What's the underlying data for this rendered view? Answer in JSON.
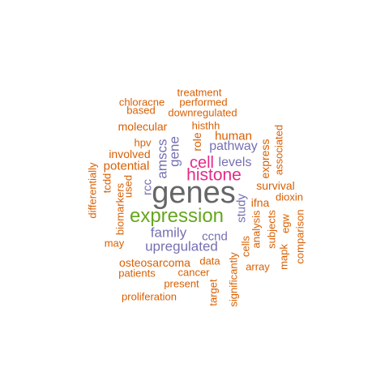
{
  "palette": {
    "orange": "#D95F02",
    "purple": "#7570B3",
    "magenta": "#E7298A",
    "green": "#66A61E",
    "gray": "#666666"
  },
  "words": [
    {
      "text": "genes",
      "color": "#666666",
      "freq": 9
    },
    {
      "text": "expression",
      "color": "#66A61E",
      "freq": 6
    },
    {
      "text": "histone",
      "color": "#E7298A",
      "freq": 5
    },
    {
      "text": "cell",
      "color": "#E7298A",
      "freq": 5
    },
    {
      "text": "family",
      "color": "#7570B3",
      "freq": 4
    },
    {
      "text": "upregulated",
      "color": "#7570B3",
      "freq": 4
    },
    {
      "text": "amscs",
      "color": "#7570B3",
      "freq": 4
    },
    {
      "text": "gene",
      "color": "#7570B3",
      "freq": 4
    },
    {
      "text": "pathway",
      "color": "#7570B3",
      "freq": 4
    },
    {
      "text": "levels",
      "color": "#7570B3",
      "freq": 4
    },
    {
      "text": "ccnd",
      "color": "#7570B3",
      "freq": 4
    },
    {
      "text": "rcc",
      "color": "#7570B3",
      "freq": 4
    },
    {
      "text": "study",
      "color": "#7570B3",
      "freq": 4
    },
    {
      "text": "human",
      "color": "#D95F02",
      "freq": 3
    },
    {
      "text": "potential",
      "color": "#D95F02",
      "freq": 3
    },
    {
      "text": "molecular",
      "color": "#D95F02",
      "freq": 2
    },
    {
      "text": "osteosarcoma",
      "color": "#D95F02",
      "freq": 2
    },
    {
      "text": "role",
      "color": "#D95F02",
      "freq": 2
    },
    {
      "text": "survival",
      "color": "#D95F02",
      "freq": 2
    },
    {
      "text": "ifna",
      "color": "#D95F02",
      "freq": 2
    },
    {
      "text": "express",
      "color": "#D95F02",
      "freq": 2
    },
    {
      "text": "treatment",
      "color": "#D95F02",
      "freq": 1
    },
    {
      "text": "chloracne",
      "color": "#D95F02",
      "freq": 1
    },
    {
      "text": "performed",
      "color": "#D95F02",
      "freq": 1
    },
    {
      "text": "based",
      "color": "#D95F02",
      "freq": 1
    },
    {
      "text": "downregulated",
      "color": "#D95F02",
      "freq": 1
    },
    {
      "text": "histhh",
      "color": "#D95F02",
      "freq": 1
    },
    {
      "text": "hpv",
      "color": "#D95F02",
      "freq": 1
    },
    {
      "text": "involved",
      "color": "#D95F02",
      "freq": 1
    },
    {
      "text": "associated",
      "color": "#D95F02",
      "freq": 1
    },
    {
      "text": "differentially",
      "color": "#D95F02",
      "freq": 1
    },
    {
      "text": "tcdd",
      "color": "#D95F02",
      "freq": 1
    },
    {
      "text": "biomarkers",
      "color": "#D95F02",
      "freq": 1
    },
    {
      "text": "used",
      "color": "#D95F02",
      "freq": 1
    },
    {
      "text": "dioxin",
      "color": "#D95F02",
      "freq": 1
    },
    {
      "text": "analysis",
      "color": "#D95F02",
      "freq": 1
    },
    {
      "text": "subjects",
      "color": "#D95F02",
      "freq": 1
    },
    {
      "text": "egw",
      "color": "#D95F02",
      "freq": 1
    },
    {
      "text": "comparison",
      "color": "#D95F02",
      "freq": 1
    },
    {
      "text": "may",
      "color": "#D95F02",
      "freq": 1
    },
    {
      "text": "data",
      "color": "#D95F02",
      "freq": 1
    },
    {
      "text": "cells",
      "color": "#D95F02",
      "freq": 1
    },
    {
      "text": "mapk",
      "color": "#D95F02",
      "freq": 1
    },
    {
      "text": "array",
      "color": "#D95F02",
      "freq": 1
    },
    {
      "text": "patients",
      "color": "#D95F02",
      "freq": 1
    },
    {
      "text": "cancer",
      "color": "#D95F02",
      "freq": 1
    },
    {
      "text": "significantly",
      "color": "#D95F02",
      "freq": 1
    },
    {
      "text": "present",
      "color": "#D95F02",
      "freq": 1
    },
    {
      "text": "target",
      "color": "#D95F02",
      "freq": 1
    },
    {
      "text": "proliferation",
      "color": "#D95F02",
      "freq": 1
    }
  ]
}
